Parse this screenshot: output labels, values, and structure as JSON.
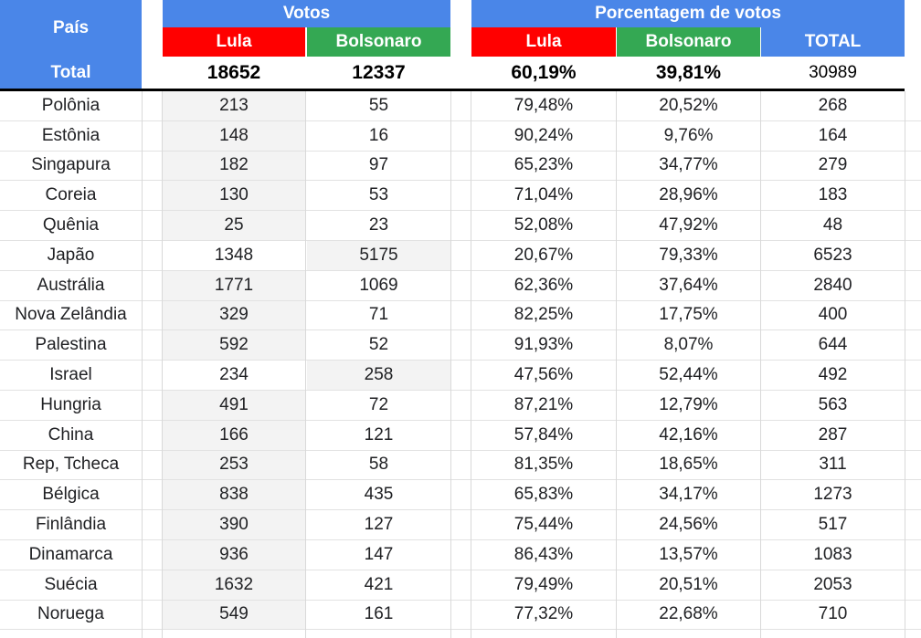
{
  "header": {
    "pais": "País",
    "votos": "Votos",
    "porcentagem": "Porcentagem de votos",
    "lula": "Lula",
    "bolsonaro": "Bolsonaro",
    "total_col": "TOTAL"
  },
  "totals": {
    "label": "Total",
    "lula": "18652",
    "bolsonaro": "12337",
    "lula_pct": "60,19%",
    "bolsonaro_pct": "39,81%",
    "total": "30989"
  },
  "rows": [
    {
      "pais": "Polônia",
      "lula": "213",
      "bolsonaro": "55",
      "lula_pct": "79,48%",
      "bolsonaro_pct": "20,52%",
      "total": "268"
    },
    {
      "pais": "Estônia",
      "lula": "148",
      "bolsonaro": "16",
      "lula_pct": "90,24%",
      "bolsonaro_pct": "9,76%",
      "total": "164"
    },
    {
      "pais": "Singapura",
      "lula": "182",
      "bolsonaro": "97",
      "lula_pct": "65,23%",
      "bolsonaro_pct": "34,77%",
      "total": "279"
    },
    {
      "pais": "Coreia",
      "lula": "130",
      "bolsonaro": "53",
      "lula_pct": "71,04%",
      "bolsonaro_pct": "28,96%",
      "total": "183"
    },
    {
      "pais": "Quênia",
      "lula": "25",
      "bolsonaro": "23",
      "lula_pct": "52,08%",
      "bolsonaro_pct": "47,92%",
      "total": "48"
    },
    {
      "pais": "Japão",
      "lula": "1348",
      "bolsonaro": "5175",
      "lula_pct": "20,67%",
      "bolsonaro_pct": "79,33%",
      "total": "6523"
    },
    {
      "pais": "Austrália",
      "lula": "1771",
      "bolsonaro": "1069",
      "lula_pct": "62,36%",
      "bolsonaro_pct": "37,64%",
      "total": "2840"
    },
    {
      "pais": "Nova Zelândia",
      "lula": "329",
      "bolsonaro": "71",
      "lula_pct": "82,25%",
      "bolsonaro_pct": "17,75%",
      "total": "400"
    },
    {
      "pais": "Palestina",
      "lula": "592",
      "bolsonaro": "52",
      "lula_pct": "91,93%",
      "bolsonaro_pct": "8,07%",
      "total": "644"
    },
    {
      "pais": "Israel",
      "lula": "234",
      "bolsonaro": "258",
      "lula_pct": "47,56%",
      "bolsonaro_pct": "52,44%",
      "total": "492"
    },
    {
      "pais": "Hungria",
      "lula": "491",
      "bolsonaro": "72",
      "lula_pct": "87,21%",
      "bolsonaro_pct": "12,79%",
      "total": "563"
    },
    {
      "pais": "China",
      "lula": "166",
      "bolsonaro": "121",
      "lula_pct": "57,84%",
      "bolsonaro_pct": "42,16%",
      "total": "287"
    },
    {
      "pais": "Rep, Tcheca",
      "lula": "253",
      "bolsonaro": "58",
      "lula_pct": "81,35%",
      "bolsonaro_pct": "18,65%",
      "total": "311"
    },
    {
      "pais": "Bélgica",
      "lula": "838",
      "bolsonaro": "435",
      "lula_pct": "65,83%",
      "bolsonaro_pct": "34,17%",
      "total": "1273"
    },
    {
      "pais": "Finlândia",
      "lula": "390",
      "bolsonaro": "127",
      "lula_pct": "75,44%",
      "bolsonaro_pct": "24,56%",
      "total": "517"
    },
    {
      "pais": "Dinamarca",
      "lula": "936",
      "bolsonaro": "147",
      "lula_pct": "86,43%",
      "bolsonaro_pct": "13,57%",
      "total": "1083"
    },
    {
      "pais": "Suécia",
      "lula": "1632",
      "bolsonaro": "421",
      "lula_pct": "79,49%",
      "bolsonaro_pct": "20,51%",
      "total": "2053"
    },
    {
      "pais": "Noruega",
      "lula": "549",
      "bolsonaro": "161",
      "lula_pct": "77,32%",
      "bolsonaro_pct": "22,68%",
      "total": "710"
    }
  ],
  "colors": {
    "header_blue": "#4a86e8",
    "lula_red": "#ff0000",
    "bolsonaro_green": "#34a853",
    "shaded_cell": "#f3f3f3"
  }
}
